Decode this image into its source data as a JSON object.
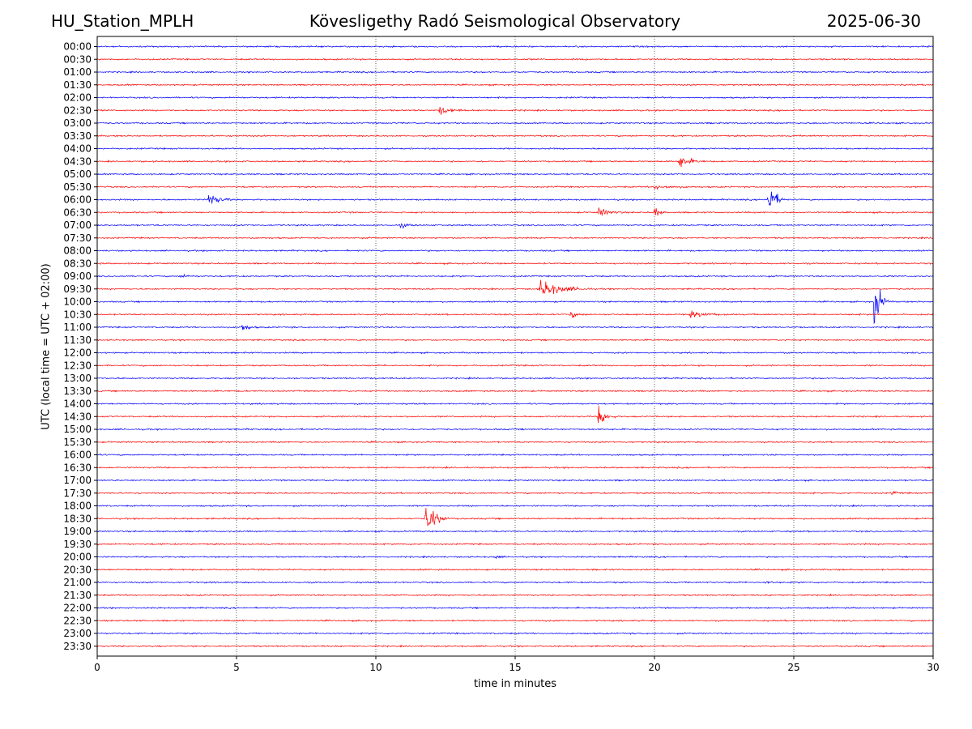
{
  "header": {
    "station": "HU_Station_MPLH",
    "title": "Kövesligethy Radó Seismological Observatory",
    "date": "2025-06-30"
  },
  "chart_data": {
    "type": "line",
    "xlabel": "time in minutes",
    "ylabel": "UTC (local time = UTC + 02:00)",
    "xlim": [
      0,
      30
    ],
    "x_ticks": [
      0,
      5,
      10,
      15,
      20,
      25,
      30
    ],
    "grid": "vertical dotted lines at x ticks",
    "trace_colors": [
      "#0000ff",
      "#ff0000"
    ],
    "rows": [
      "00:00",
      "00:30",
      "01:00",
      "01:30",
      "02:00",
      "02:30",
      "03:00",
      "03:30",
      "04:00",
      "04:30",
      "05:00",
      "05:30",
      "06:00",
      "06:30",
      "07:00",
      "07:30",
      "08:00",
      "08:30",
      "09:00",
      "09:30",
      "10:00",
      "10:30",
      "11:00",
      "11:30",
      "12:00",
      "12:30",
      "13:00",
      "13:30",
      "14:00",
      "14:30",
      "15:00",
      "15:30",
      "16:00",
      "16:30",
      "17:00",
      "17:30",
      "18:00",
      "18:30",
      "19:00",
      "19:30",
      "20:00",
      "20:30",
      "21:00",
      "21:30",
      "22:00",
      "22:30",
      "23:00",
      "23:30"
    ],
    "events": [
      {
        "row": "02:30",
        "minute": 12.3,
        "amplitude": 0.5,
        "duration_min": 1.0
      },
      {
        "row": "04:30",
        "minute": 20.9,
        "amplitude": 0.9,
        "duration_min": 0.9
      },
      {
        "row": "05:30",
        "minute": 20.0,
        "amplitude": 0.3,
        "duration_min": 1.5
      },
      {
        "row": "06:00",
        "minute": 4.0,
        "amplitude": 0.9,
        "duration_min": 0.9
      },
      {
        "row": "06:00",
        "minute": 24.1,
        "amplitude": 2.6,
        "duration_min": 0.6
      },
      {
        "row": "06:30",
        "minute": 18.0,
        "amplitude": 0.6,
        "duration_min": 0.9
      },
      {
        "row": "06:30",
        "minute": 20.0,
        "amplitude": 0.8,
        "duration_min": 0.4
      },
      {
        "row": "07:00",
        "minute": 10.9,
        "amplitude": 0.3,
        "duration_min": 0.6
      },
      {
        "row": "09:00",
        "minute": 3.0,
        "amplitude": 0.2,
        "duration_min": 0.8
      },
      {
        "row": "09:30",
        "minute": 15.9,
        "amplitude": 1.2,
        "duration_min": 1.8
      },
      {
        "row": "10:00",
        "minute": 27.9,
        "amplitude": 3.8,
        "duration_min": 0.5
      },
      {
        "row": "10:30",
        "minute": 17.0,
        "amplitude": 0.4,
        "duration_min": 0.6
      },
      {
        "row": "10:30",
        "minute": 21.3,
        "amplitude": 0.4,
        "duration_min": 1.5
      },
      {
        "row": "11:00",
        "minute": 5.2,
        "amplitude": 0.5,
        "duration_min": 0.6
      },
      {
        "row": "14:30",
        "minute": 18.0,
        "amplitude": 1.6,
        "duration_min": 0.6
      },
      {
        "row": "17:30",
        "minute": 28.5,
        "amplitude": 0.3,
        "duration_min": 0.4
      },
      {
        "row": "18:30",
        "minute": 11.8,
        "amplitude": 2.5,
        "duration_min": 0.8
      },
      {
        "row": "20:00",
        "minute": 14.3,
        "amplitude": 0.2,
        "duration_min": 0.4
      },
      {
        "row": "21:00",
        "minute": 24.0,
        "amplitude": 0.2,
        "duration_min": 0.5
      }
    ]
  }
}
